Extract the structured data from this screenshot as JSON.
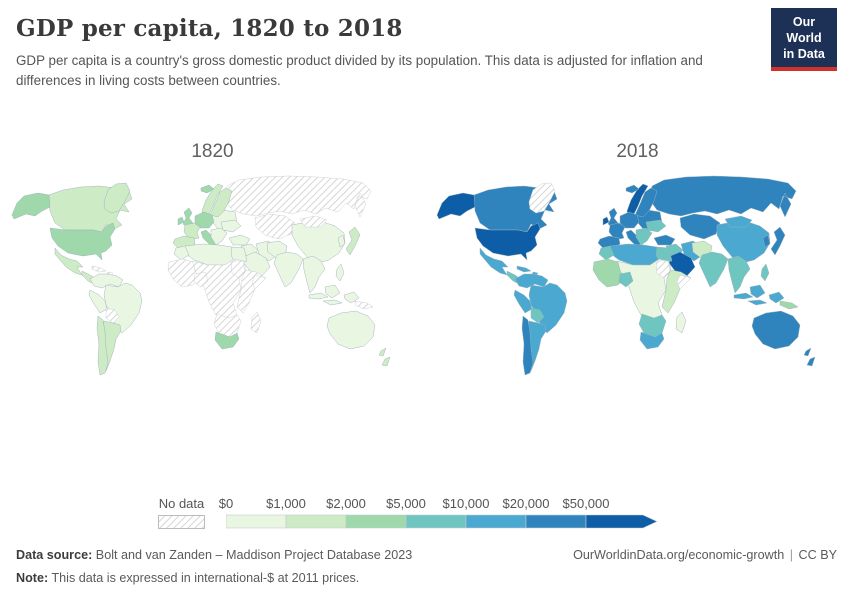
{
  "header": {
    "title": "GDP per capita, 1820 to 2018",
    "subtitle": "GDP per capita is a country's gross domestic product divided by its population. This data is adjusted for inflation and differences in living costs between countries.",
    "logo": {
      "line1": "Our World",
      "line2": "in Data",
      "bg_color": "#1d3156",
      "accent_color": "#d1322e"
    }
  },
  "maps": [
    {
      "label": "1820",
      "fills": {
        "russia": "nodata",
        "central_asia": "nodata",
        "china": "b1",
        "mongolia": "nodata",
        "korea": "b1",
        "japan": "b2",
        "iran": "b1",
        "pakistan_afghan": "b1",
        "india": "b1",
        "southeast_asia": "b1",
        "indonesia": "b1",
        "philippines": "b1",
        "png": "nodata",
        "australia": "b1",
        "new_zealand": "b2",
        "canada": "b2",
        "alaska": "b3",
        "greenland": "b2",
        "usa": "b3",
        "mexico": "b2",
        "central_america": "b2",
        "caribbean": "nodata",
        "colombia_venezuela": "b1",
        "brazil": "b1",
        "peru": "b1",
        "bolivia": "nodata",
        "argentina": "b2",
        "chile": "b2",
        "eastern_europe": "b1",
        "ukraine": "b1",
        "sweden_finland": "b2",
        "norway": "b2",
        "iceland": "b3",
        "uk": "b3",
        "ireland": "b3",
        "central_europe": "b3",
        "france": "b2",
        "iberia": "b2",
        "italy": "b3",
        "balkans": "b1",
        "turkey": "b1",
        "levant_iraq": "b1",
        "arabia": "b1",
        "algeria_libya": "b1",
        "morocco": "b1",
        "egypt": "b1",
        "sudan": "nodata",
        "sahel_central": "nodata",
        "west_africa": "nodata",
        "nigeria": "nodata",
        "horn_africa": "nodata",
        "somalia": "nodata",
        "southern_africa": "nodata",
        "south_africa": "b3",
        "madagascar": "nodata"
      }
    },
    {
      "label": "2018",
      "fills": {
        "russia": "b6",
        "central_asia": "b6",
        "china": "b5",
        "mongolia": "b5",
        "korea": "b6",
        "japan": "b6",
        "iran": "b5",
        "pakistan_afghan": "b2",
        "india": "b4",
        "southeast_asia": "b4",
        "indonesia": "b5",
        "philippines": "b4",
        "png": "b3",
        "australia": "b6",
        "new_zealand": "b6",
        "canada": "b6",
        "alaska": "b7",
        "greenland": "nodata",
        "usa": "b7",
        "mexico": "b5",
        "central_america": "b4",
        "caribbean": "b5",
        "colombia_venezuela": "b5",
        "brazil": "b5",
        "peru": "b5",
        "bolivia": "b4",
        "argentina": "b5",
        "chile": "b6",
        "eastern_europe": "b6",
        "ukraine": "b4",
        "sweden_finland": "b6",
        "norway": "b7",
        "iceland": "b6",
        "uk": "b6",
        "ireland": "b7",
        "central_europe": "b6",
        "france": "b6",
        "iberia": "b6",
        "italy": "b6",
        "balkans": "b4",
        "turkey": "b6",
        "levant_iraq": "b4",
        "arabia": "b7",
        "algeria_libya": "b5",
        "morocco": "b4",
        "egypt": "b4",
        "sudan": "nodata",
        "sahel_central": "b1",
        "west_africa": "b3",
        "nigeria": "b4",
        "horn_africa": "b2",
        "somalia": "nodata",
        "southern_africa": "b4",
        "south_africa": "b5",
        "madagascar": "b1"
      }
    }
  ],
  "legend": {
    "no_data_label": "No data",
    "ticks": [
      "$0",
      "$1,000",
      "$2,000",
      "$5,000",
      "$10,000",
      "$20,000",
      "$50,000"
    ],
    "band_colors": [
      "#e8f6e2",
      "#cdebc4",
      "#9fd8ab",
      "#6fc5bf",
      "#4ba8d0",
      "#2f84bd",
      "#0d5da7"
    ],
    "hatch_line_color": "#cccccc",
    "border_color": "#c3ccd2",
    "map_border_color": "#9fb0ba"
  },
  "footer": {
    "source_label": "Data source:",
    "source_text": "Bolt and van Zanden – Maddison Project Database 2023",
    "note_label": "Note:",
    "note_text": "This data is expressed in international-$ at 2011 prices.",
    "url": "OurWorldinData.org/economic-growth",
    "divider": "|",
    "license": "CC BY"
  },
  "chart_data": {
    "type": "heatmap",
    "subtype": "choropleth-world-map-pair",
    "title": "GDP per capita, 1820 to 2018",
    "unit": "international-$ at 2011 prices",
    "years": [
      "1820",
      "2018"
    ],
    "legend_thresholds": [
      0,
      1000,
      2000,
      5000,
      10000,
      20000,
      50000
    ],
    "legend_position": "bottom",
    "band_labels": {
      "b1": "$0–$1,000",
      "b2": "$1,000–$2,000",
      "b3": "$2,000–$5,000",
      "b4": "$5,000–$10,000",
      "b5": "$10,000–$20,000",
      "b6": "$20,000–$50,000",
      "b7": "$50,000+",
      "nodata": "No data"
    },
    "bands_by_region": {
      "United States": [
        "b3",
        "b7"
      ],
      "Alaska (USA)": [
        "b3",
        "b7"
      ],
      "Canada": [
        "b2",
        "b6"
      ],
      "Greenland": [
        "b2",
        "nodata"
      ],
      "Mexico": [
        "b2",
        "b5"
      ],
      "Central America": [
        "b2",
        "b4"
      ],
      "Caribbean": [
        "nodata",
        "b5"
      ],
      "Colombia/Venezuela": [
        "b1",
        "b5"
      ],
      "Brazil": [
        "b1",
        "b5"
      ],
      "Peru": [
        "b1",
        "b5"
      ],
      "Bolivia": [
        "nodata",
        "b4"
      ],
      "Argentina": [
        "b2",
        "b5"
      ],
      "Chile": [
        "b2",
        "b6"
      ],
      "Iceland": [
        "b3",
        "b6"
      ],
      "United Kingdom": [
        "b3",
        "b6"
      ],
      "Ireland": [
        "b3",
        "b7"
      ],
      "Norway": [
        "b2",
        "b7"
      ],
      "Sweden/Finland": [
        "b2",
        "b6"
      ],
      "France": [
        "b2",
        "b6"
      ],
      "Germany/Central Europe": [
        "b3",
        "b6"
      ],
      "Spain/Portugal": [
        "b2",
        "b6"
      ],
      "Italy": [
        "b3",
        "b6"
      ],
      "Eastern Europe": [
        "b1",
        "b6"
      ],
      "Ukraine": [
        "b1",
        "b4"
      ],
      "Balkans": [
        "b1",
        "b4"
      ],
      "Russia": [
        "nodata",
        "b6"
      ],
      "Central Asia": [
        "nodata",
        "b6"
      ],
      "Turkey": [
        "b1",
        "b6"
      ],
      "Levant/Iraq": [
        "b1",
        "b4"
      ],
      "Arabian Peninsula": [
        "b1",
        "b7"
      ],
      "Iran": [
        "b1",
        "b5"
      ],
      "Morocco": [
        "b1",
        "b4"
      ],
      "Algeria/Libya": [
        "b1",
        "b5"
      ],
      "Egypt": [
        "b1",
        "b4"
      ],
      "Sudan": [
        "nodata",
        "nodata"
      ],
      "West Africa": [
        "nodata",
        "b3"
      ],
      "Nigeria": [
        "nodata",
        "b4"
      ],
      "Sahel/Central Africa": [
        "nodata",
        "b1"
      ],
      "Horn of Africa": [
        "nodata",
        "b2"
      ],
      "Somalia": [
        "nodata",
        "nodata"
      ],
      "Southern Africa": [
        "nodata",
        "b4"
      ],
      "South Africa": [
        "b3",
        "b5"
      ],
      "Madagascar": [
        "nodata",
        "b1"
      ],
      "China": [
        "b1",
        "b5"
      ],
      "Mongolia": [
        "nodata",
        "b5"
      ],
      "Korea": [
        "b1",
        "b6"
      ],
      "Japan": [
        "b2",
        "b6"
      ],
      "Pakistan/Afghanistan": [
        "b1",
        "b2"
      ],
      "India": [
        "b1",
        "b4"
      ],
      "Southeast Asia": [
        "b1",
        "b4"
      ],
      "Indonesia": [
        "b1",
        "b5"
      ],
      "Philippines": [
        "b1",
        "b4"
      ],
      "Papua New Guinea": [
        "nodata",
        "b3"
      ],
      "Australia": [
        "b1",
        "b6"
      ],
      "New Zealand": [
        "b2",
        "b6"
      ]
    }
  }
}
